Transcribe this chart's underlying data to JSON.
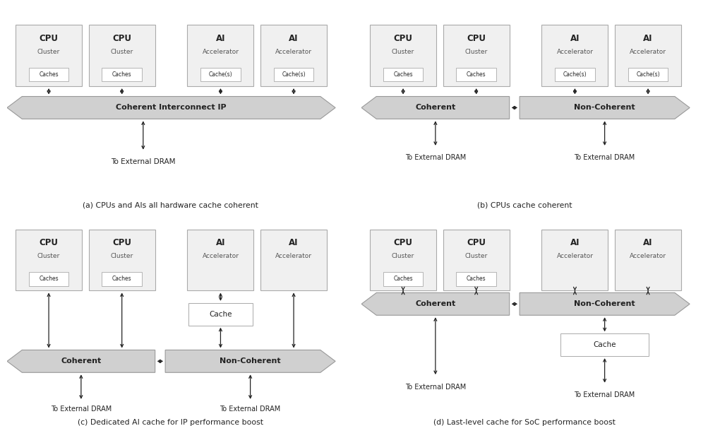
{
  "bg_color": "#ffffff",
  "box_facecolor": "#f0f0f0",
  "box_edgecolor": "#aaaaaa",
  "banner_facecolor": "#d0d0d0",
  "banner_edgecolor": "#999999",
  "cache_facecolor": "#f0f0f0",
  "cache_edgecolor": "#aaaaaa",
  "inner_cache_facecolor": "#ffffff",
  "inner_cache_edgecolor": "#aaaaaa",
  "text_dark": "#222222",
  "text_gray": "#555555",
  "arrow_color": "#222222",
  "captions": [
    "(a) CPUs and AIs all hardware cache coherent",
    "(b) CPUs cache coherent",
    "(c) Dedicated AI cache for IP performance boost",
    "(d) Last-level cache for SoC performance boost"
  ],
  "node_titles": [
    "CPU",
    "CPU",
    "AI",
    "AI"
  ],
  "node_subs": [
    "Cluster",
    "Cluster",
    "Accelerator",
    "Accelerator"
  ],
  "cpu_cache": "Caches",
  "ai_cache": "Cache(s)",
  "dram": "To External DRAM",
  "banner_a": "Coherent Interconnect IP",
  "banner_coh": "Coherent",
  "banner_nc": "Non-Coherent",
  "cache_lbl": "Cache"
}
